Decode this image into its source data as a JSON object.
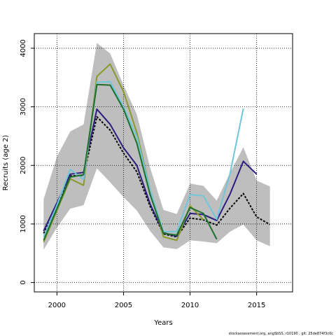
{
  "chart_data": {
    "type": "line",
    "title": "",
    "xlabel": "Years",
    "ylabel": "Recruits (age 2)",
    "xlim": [
      1998.3,
      2017.7
    ],
    "ylim": [
      -160,
      4250
    ],
    "x_ticks": [
      2000,
      2005,
      2010,
      2015
    ],
    "x_tick_labels": [
      "2000",
      "2005",
      "2010",
      "2015"
    ],
    "y_ticks": [
      0,
      1000,
      2000,
      3000,
      4000
    ],
    "y_tick_labels": [
      "0",
      "1000",
      "2000",
      "3000",
      "4000"
    ],
    "grid": true,
    "legend": "none",
    "band": {
      "color": "#bebebe",
      "x": [
        1999,
        2000,
        2001,
        2002,
        2003,
        2004,
        2005,
        2006,
        2007,
        2008,
        2009,
        2010,
        2011,
        2012,
        2013,
        2014,
        2015,
        2016
      ],
      "upper": [
        1420,
        2150,
        2580,
        2700,
        4090,
        3910,
        3370,
        2870,
        1960,
        1240,
        1170,
        1690,
        1650,
        1400,
        1870,
        2310,
        1740,
        1640
      ],
      "lower": [
        560,
        940,
        1260,
        1320,
        1950,
        1710,
        1460,
        1230,
        880,
        600,
        570,
        720,
        700,
        670,
        870,
        990,
        720,
        620
      ]
    },
    "series": [
      {
        "color": "#000000",
        "dashed": true,
        "x": [
          1999,
          2000,
          2001,
          2002,
          2003,
          2004,
          2005,
          2006,
          2007,
          2008,
          2009,
          2010,
          2011,
          2012,
          2013,
          2014,
          2015,
          2016
        ],
        "y": [
          840,
          1270,
          1820,
          1830,
          2830,
          2600,
          2210,
          1890,
          1300,
          830,
          780,
          1100,
          1070,
          980,
          1270,
          1520,
          1120,
          990
        ]
      },
      {
        "color": "#2b1d7e",
        "x": [
          1999,
          2000,
          2001,
          2002,
          2003,
          2004,
          2005,
          2006,
          2007,
          2008,
          2009,
          2010,
          2011,
          2012,
          2013,
          2014,
          2015
        ],
        "y": [
          880,
          1360,
          1850,
          1880,
          2960,
          2700,
          2300,
          2000,
          1340,
          850,
          790,
          1180,
          1160,
          1060,
          1510,
          2070,
          1850
        ]
      },
      {
        "color": "#8a9a2a",
        "x": [
          1999,
          2000,
          2001,
          2002,
          2003,
          2004,
          2005,
          2006,
          2007,
          2008,
          2009,
          2010,
          2011
        ],
        "y": [
          690,
          1230,
          1770,
          1660,
          3520,
          3730,
          3260,
          2560,
          1580,
          780,
          720,
          1310,
          1070
        ]
      },
      {
        "color": "#6fc6d8",
        "x": [
          1999,
          2000,
          2001,
          2002,
          2003,
          2004,
          2005,
          2006,
          2007,
          2008,
          2009,
          2010,
          2011,
          2012,
          2013,
          2014
        ],
        "y": [
          780,
          1320,
          1930,
          1760,
          3420,
          3430,
          3000,
          2490,
          1580,
          870,
          870,
          1500,
          1480,
          1080,
          1860,
          2970
        ]
      },
      {
        "color": "#1d6e2a",
        "x": [
          1999,
          2000,
          2001,
          2002,
          2003,
          2004,
          2005,
          2006,
          2007,
          2008,
          2009,
          2010,
          2011,
          2012
        ],
        "y": [
          720,
          1260,
          1800,
          1840,
          3380,
          3370,
          2960,
          2380,
          1500,
          840,
          810,
          1280,
          1180,
          740
        ]
      }
    ]
  },
  "footer": "stockassessment.org, angSbSS, r10190 , git: 25de874f3c0c"
}
